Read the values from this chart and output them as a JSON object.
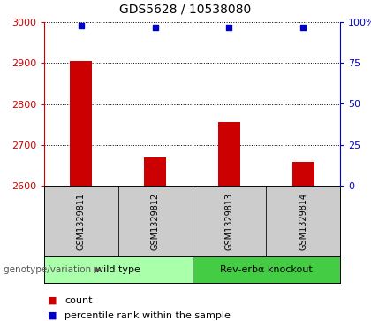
{
  "title": "GDS5628 / 10538080",
  "samples": [
    "GSM1329811",
    "GSM1329812",
    "GSM1329813",
    "GSM1329814"
  ],
  "counts": [
    2905,
    2670,
    2755,
    2658
  ],
  "percentiles": [
    98,
    97,
    97,
    97
  ],
  "ylim_left": [
    2600,
    3000
  ],
  "ylim_right": [
    0,
    100
  ],
  "bar_color": "#cc0000",
  "dot_color": "#0000cc",
  "bar_width": 0.3,
  "groups": [
    {
      "label": "wild type",
      "samples": [
        0,
        1
      ],
      "color": "#aaffaa"
    },
    {
      "label": "Rev-erbα knockout",
      "samples": [
        2,
        3
      ],
      "color": "#44cc44"
    }
  ],
  "genotype_label": "genotype/variation",
  "legend_count_label": "count",
  "legend_percentile_label": "percentile rank within the sample",
  "grid_color": "black",
  "ytick_color_left": "#cc0000",
  "ytick_color_right": "#0000cc",
  "sample_box_color": "#cccccc",
  "title_fontsize": 10,
  "tick_fontsize": 8,
  "label_fontsize": 8
}
